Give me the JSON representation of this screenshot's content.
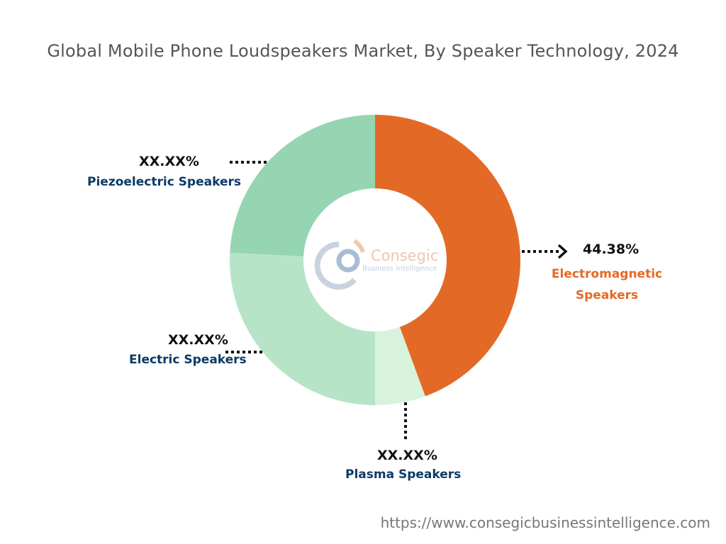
{
  "chart_data": {
    "type": "pie",
    "donut": true,
    "title": "Global Mobile Phone Loudspeakers Market, By Speaker Technology, 2024",
    "slices": [
      {
        "name": "Electromagnetic Speakers",
        "label": "44.38%",
        "value": 44.38,
        "color": "#E36A26"
      },
      {
        "name": "Plasma Speakers",
        "label": "XX.XX%",
        "value": 5.6,
        "color": "#D8F3DC"
      },
      {
        "name": "Electric Speakers",
        "label": "XX.XX%",
        "value": 25.8,
        "color": "#B7E4C7"
      },
      {
        "name": "Piezoelectric Speakers",
        "label": "XX.XX%",
        "value": 24.2,
        "color": "#95D5B2"
      }
    ],
    "start_angle": "top, clockwise"
  },
  "electromagnetic_name_lines": [
    "Electromagnetic",
    "Speakers"
  ],
  "logo": {
    "brand": "Consegic",
    "tagline": "Business Intelligence"
  },
  "footer_url": "https://www.consegicbusinessintelligence.com"
}
